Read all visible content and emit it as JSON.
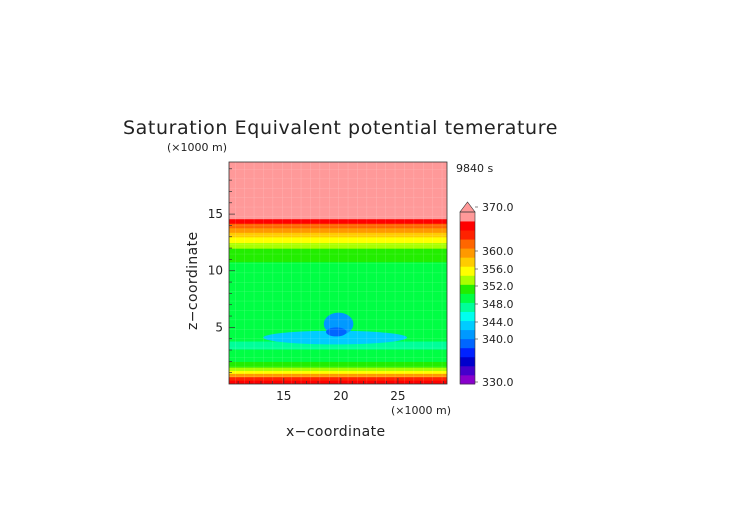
{
  "chart_data": {
    "type": "heatmap",
    "title": "Saturation Equivalent potential temerature",
    "time_label": "9840 s",
    "xlabel": "x−coordinate",
    "ylabel": "z−coordinate",
    "x_unit": "(×1000 m)",
    "y_unit": "(×1000 m)",
    "xlim": [
      10.2,
      29.3
    ],
    "ylim": [
      0,
      19.6
    ],
    "x_ticks": [
      "15",
      "20",
      "25"
    ],
    "y_ticks": [
      "5",
      "10",
      "15"
    ],
    "grid": true,
    "colorbar": {
      "labels": [
        "330.0",
        "340.0",
        "344.0",
        "348.0",
        "352.0",
        "356.0",
        "360.0",
        "370.0"
      ],
      "colors": [
        "#8800cc",
        "#4400cc",
        "#0000cc",
        "#0022ff",
        "#0066ff",
        "#0099ff",
        "#00ccff",
        "#00ffee",
        "#00ff99",
        "#00ff44",
        "#22ee00",
        "#aaff00",
        "#ffff00",
        "#ffcc00",
        "#ff9900",
        "#ff6600",
        "#ff2200",
        "#ff0000",
        "#ff9999"
      ],
      "extend": "max"
    },
    "profile": [
      {
        "z_top": 0.35,
        "value": 362
      },
      {
        "z_top": 0.65,
        "value": 359
      },
      {
        "z_top": 0.95,
        "value": 355
      },
      {
        "z_top": 1.2,
        "value": 352
      },
      {
        "z_top": 1.5,
        "value": 350
      },
      {
        "z_top": 2.0,
        "value": 347
      },
      {
        "z_top": 2.5,
        "value": 346
      },
      {
        "z_top": 3.1,
        "value": 345
      },
      {
        "z_top": 3.8,
        "value": 344
      },
      {
        "z_top": 10.8,
        "value": 345
      },
      {
        "z_top": 11.5,
        "value": 347
      },
      {
        "z_top": 12.0,
        "value": 348
      },
      {
        "z_top": 12.5,
        "value": 349.5
      },
      {
        "z_top": 13.0,
        "value": 351
      },
      {
        "z_top": 13.4,
        "value": 353
      },
      {
        "z_top": 13.8,
        "value": 355
      },
      {
        "z_top": 14.2,
        "value": 358
      },
      {
        "z_top": 14.6,
        "value": 361
      },
      {
        "z_top": 15.1,
        "value": 365
      },
      {
        "z_top": 19.6,
        "value": 372
      }
    ],
    "anomalies": [
      {
        "x_center": 19.5,
        "z_center": 4.1,
        "x_halfwidth": 6.3,
        "z_halfheight": 0.6,
        "value": 342
      },
      {
        "x_center": 19.8,
        "z_center": 5.3,
        "x_halfwidth": 1.3,
        "z_halfheight": 1.0,
        "value": 341
      },
      {
        "x_center": 19.6,
        "z_center": 4.6,
        "x_halfwidth": 0.9,
        "z_halfheight": 0.4,
        "value": 340
      }
    ]
  }
}
